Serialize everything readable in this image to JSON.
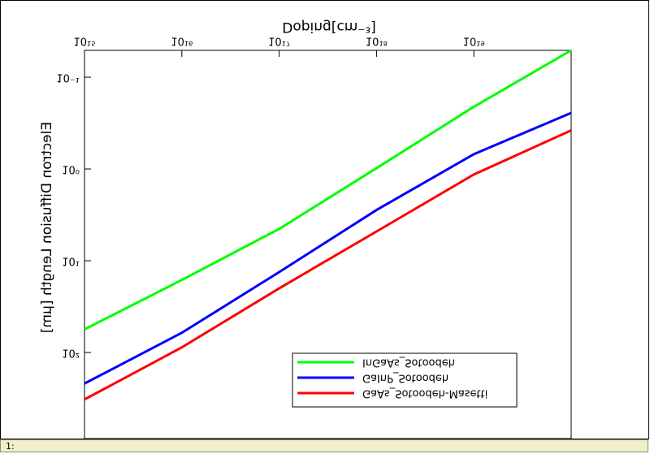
{
  "chart_data": {
    "type": "line",
    "title": "Doping[cm⁻³]",
    "y_label": "Electron Diffusion Length [µm]",
    "x_log": true,
    "y_log": true,
    "mirrored_vertically": true,
    "x": [
      1000000000000000.0,
      1e+16,
      1e+17,
      1e+18,
      1e+19,
      1e+20
    ],
    "series": [
      {
        "name": "GaAs_Sotoodeh-Masetti",
        "color": "#ff0000",
        "values": [
          325,
          88,
          20,
          4.8,
          1.15,
          0.38
        ]
      },
      {
        "name": "GaInP_Sotoodeh",
        "color": "#0000ff",
        "values": [
          218,
          61,
          13.3,
          2.8,
          0.69,
          0.245
        ]
      },
      {
        "name": "InGaAs_Sotoodeh",
        "color": "#00ff00",
        "values": [
          56,
          16.2,
          4.5,
          0.98,
          0.21,
          0.051
        ]
      }
    ],
    "xlim": [
      1000000000000000.0,
      1e+20
    ],
    "xticks": [
      {
        "value": 1000000000000000.0,
        "label": "10¹⁵"
      },
      {
        "value": 1e+16,
        "label": "10¹⁶"
      },
      {
        "value": 1e+17,
        "label": "10¹⁷"
      },
      {
        "value": 1e+18,
        "label": "10¹⁸"
      },
      {
        "value": 1e+19,
        "label": "10¹⁹"
      }
    ],
    "ylim": [
      0.051,
      867
    ],
    "yticks": [
      {
        "value": 0.1,
        "label": "10⁻¹"
      },
      {
        "value": 1,
        "label": "10⁰"
      },
      {
        "value": 10,
        "label": "10¹"
      },
      {
        "value": 100,
        "label": "10²"
      }
    ]
  },
  "status_bar": "1:"
}
